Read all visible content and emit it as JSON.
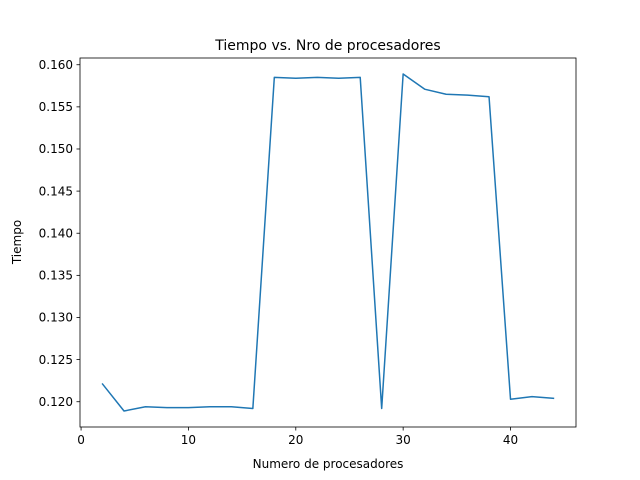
{
  "chart_data": {
    "type": "line",
    "title": "Tiempo vs. Nro de procesadores",
    "xlabel": "Numero de procesadores",
    "ylabel": "Tiempo",
    "xlim": [
      -0.1,
      46.1
    ],
    "ylim": [
      0.117,
      0.1608
    ],
    "grid": false,
    "xticks": [
      0,
      10,
      20,
      30,
      40
    ],
    "xtick_labels": [
      "0",
      "10",
      "20",
      "30",
      "40"
    ],
    "yticks": [
      0.12,
      0.125,
      0.13,
      0.135,
      0.14,
      0.145,
      0.15,
      0.155,
      0.16
    ],
    "ytick_labels": [
      "0.120",
      "0.125",
      "0.130",
      "0.135",
      "0.140",
      "0.145",
      "0.150",
      "0.155",
      "0.160"
    ],
    "series": [
      {
        "name": "Tiempo",
        "color": "#1f77b4",
        "x": [
          2,
          4,
          6,
          8,
          10,
          12,
          14,
          16,
          18,
          20,
          22,
          24,
          26,
          28,
          30,
          32,
          34,
          36,
          38,
          40,
          42,
          44
        ],
        "values": [
          0.1221,
          0.1189,
          0.1194,
          0.1193,
          0.1193,
          0.1194,
          0.1194,
          0.1192,
          0.1585,
          0.1584,
          0.1585,
          0.1584,
          0.1585,
          0.1192,
          0.1589,
          0.1571,
          0.1565,
          0.1564,
          0.1562,
          0.1203,
          0.1206,
          0.1204
        ]
      }
    ]
  }
}
